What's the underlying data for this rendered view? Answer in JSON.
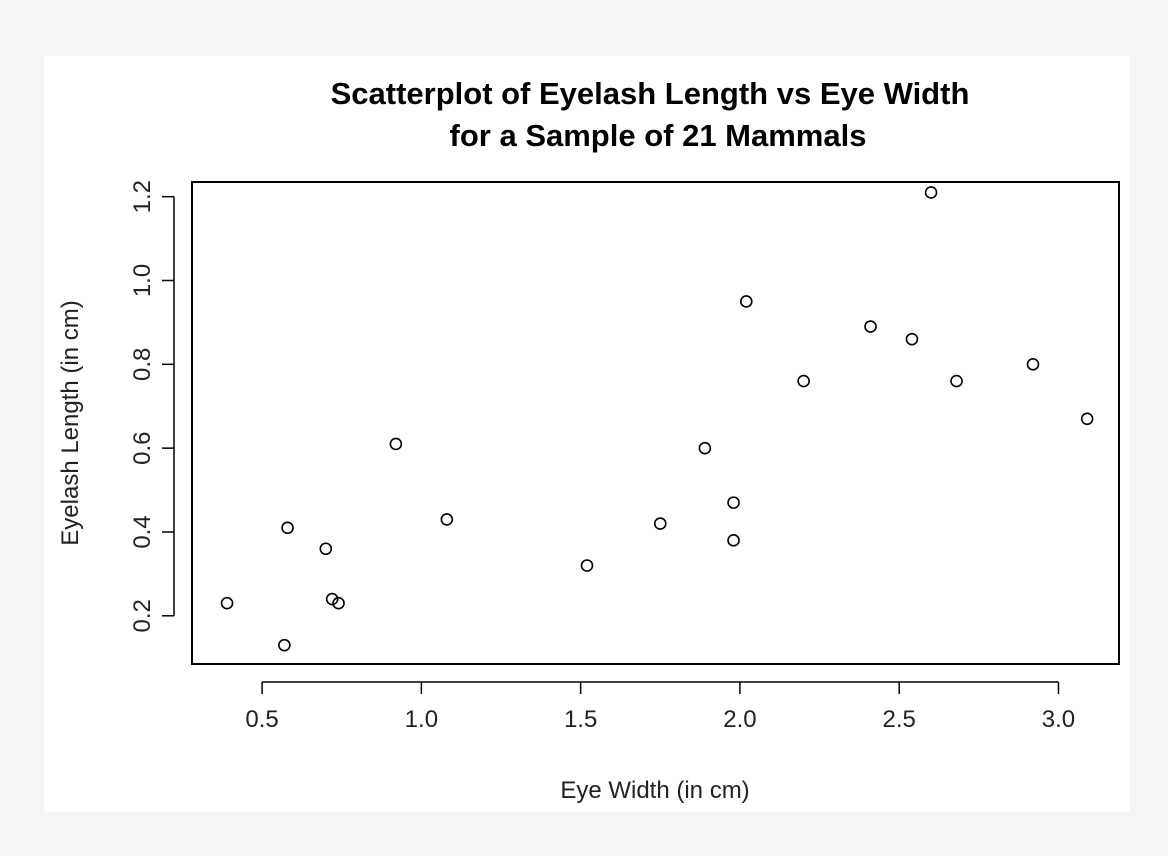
{
  "chart_data": {
    "type": "scatter",
    "title": [
      "Scatterplot of Eyelash Length vs Eye Width",
      "for a Sample of 21 Mammals"
    ],
    "xlabel": "Eye Width (in cm)",
    "ylabel": "Eyelash Length (in cm)",
    "xlim": [
      0.28,
      3.19
    ],
    "ylim": [
      0.085,
      1.235
    ],
    "xticks": [
      0.5,
      1.0,
      1.5,
      2.0,
      2.5,
      3.0
    ],
    "xtick_labels": [
      "0.5",
      "1.0",
      "1.5",
      "2.0",
      "2.5",
      "3.0"
    ],
    "yticks": [
      0.2,
      0.4,
      0.6,
      0.8,
      1.0,
      1.2
    ],
    "ytick_labels": [
      "0.2",
      "0.4",
      "0.6",
      "0.8",
      "1.0",
      "1.2"
    ],
    "grid": false,
    "marker": "open-circle",
    "points": [
      {
        "x": 0.39,
        "y": 0.23
      },
      {
        "x": 0.57,
        "y": 0.13
      },
      {
        "x": 0.58,
        "y": 0.41
      },
      {
        "x": 0.7,
        "y": 0.36
      },
      {
        "x": 0.72,
        "y": 0.24
      },
      {
        "x": 0.74,
        "y": 0.23
      },
      {
        "x": 0.92,
        "y": 0.61
      },
      {
        "x": 1.08,
        "y": 0.43
      },
      {
        "x": 1.52,
        "y": 0.32
      },
      {
        "x": 1.75,
        "y": 0.42
      },
      {
        "x": 1.89,
        "y": 0.6
      },
      {
        "x": 1.98,
        "y": 0.47
      },
      {
        "x": 1.98,
        "y": 0.38
      },
      {
        "x": 2.02,
        "y": 0.95
      },
      {
        "x": 2.2,
        "y": 0.76
      },
      {
        "x": 2.41,
        "y": 0.89
      },
      {
        "x": 2.54,
        "y": 0.86
      },
      {
        "x": 2.6,
        "y": 1.21
      },
      {
        "x": 2.68,
        "y": 0.76
      },
      {
        "x": 2.92,
        "y": 0.8
      },
      {
        "x": 3.09,
        "y": 0.67
      }
    ]
  }
}
